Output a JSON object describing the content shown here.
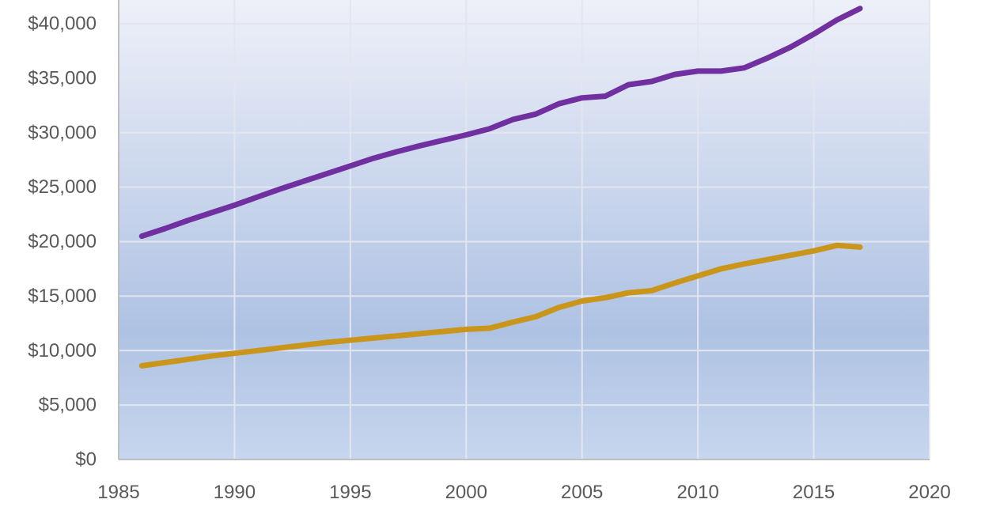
{
  "chart_data": {
    "type": "line",
    "title": "",
    "xlabel": "",
    "ylabel": "",
    "xlim": [
      1985,
      2020
    ],
    "ylim": [
      0,
      40000
    ],
    "x_ticks": [
      "1985",
      "1990",
      "1995",
      "2000",
      "2005",
      "2010",
      "2015",
      "2020"
    ],
    "y_ticks": [
      "$0",
      "$5,000",
      "$10,000",
      "$15,000",
      "$20,000",
      "$25,000",
      "$30,000",
      "$35,000",
      "$40,000"
    ],
    "grid": true,
    "legend": "none",
    "background": "vertical gradient, light lavender at top to light blue at bottom",
    "series": [
      {
        "color": "#7030a0",
        "x": [
          1986,
          1987,
          1988,
          1989,
          1990,
          1991,
          1992,
          1993,
          1994,
          1995,
          1996,
          1997,
          1998,
          1999,
          2000,
          2001,
          2002,
          2003,
          2004,
          2005,
          2006,
          2007,
          2008,
          2009,
          2010,
          2011,
          2012,
          2013,
          2014,
          2015,
          2016,
          2017
        ],
        "values": [
          20500,
          21200,
          21950,
          22650,
          23350,
          24100,
          24850,
          25550,
          26250,
          26950,
          27650,
          28250,
          28800,
          29300,
          29800,
          30350,
          31200,
          31700,
          32650,
          33200,
          33350,
          34400,
          34700,
          35350,
          35650,
          35650,
          35950,
          36850,
          37850,
          39050,
          40350,
          41400
        ]
      },
      {
        "color": "#c9961b",
        "x": [
          1986,
          1987,
          1988,
          1989,
          1990,
          1991,
          1992,
          1993,
          1994,
          1995,
          1996,
          1997,
          1998,
          1999,
          2000,
          2001,
          2002,
          2003,
          2004,
          2005,
          2006,
          2007,
          2008,
          2009,
          2010,
          2011,
          2012,
          2013,
          2014,
          2015,
          2016,
          2017
        ],
        "values": [
          8600,
          8900,
          9200,
          9500,
          9750,
          10000,
          10250,
          10500,
          10750,
          10950,
          11150,
          11350,
          11550,
          11750,
          11950,
          12050,
          12600,
          13100,
          13950,
          14550,
          14850,
          15300,
          15500,
          16200,
          16850,
          17500,
          17950,
          18350,
          18750,
          19150,
          19650,
          19500
        ]
      }
    ]
  }
}
